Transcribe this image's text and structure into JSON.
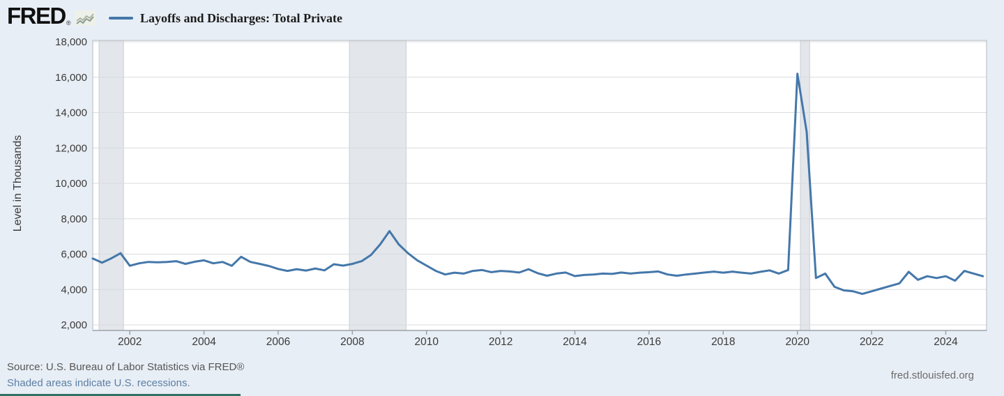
{
  "header": {
    "logo_text": "FRED",
    "registered_mark": "®",
    "series_legend": "Layoffs and Discharges: Total Private"
  },
  "footer": {
    "source_line": "Source: U.S. Bureau of Labor Statistics via FRED®",
    "recession_note": "Shaded areas indicate U.S. recessions.",
    "site_link": "fred.stlouisfed.org"
  },
  "colors": {
    "background": "#e8eef5",
    "plot_background": "#ffffff",
    "line": "#4477aa",
    "grid": "#d8dbdf",
    "plot_border": "#b4b9bf",
    "axis_bottom": "#9aa0a6",
    "recession_fill": "#e3e6ea",
    "recession_edge": "#c9ced4",
    "tick_text": "#3a3a3a",
    "link": "#5b7fa5",
    "source_text": "#565656",
    "accent_bar": "#2e7263"
  },
  "chart_data": {
    "type": "line",
    "title": "Layoffs and Discharges: Total Private",
    "xlabel": "",
    "ylabel": "Level in Thousands",
    "units": "thousands",
    "frequency": "quarterly",
    "grid": "horizontal",
    "legend_position": "top-header",
    "ylim": [
      2000,
      18000
    ],
    "xlim": [
      2001,
      2025.1
    ],
    "y_ticks": [
      2000,
      4000,
      6000,
      8000,
      10000,
      12000,
      14000,
      16000,
      18000
    ],
    "x_ticks": [
      2002,
      2004,
      2006,
      2008,
      2010,
      2012,
      2014,
      2016,
      2018,
      2020,
      2022,
      2024
    ],
    "recession_bands": [
      [
        2001.17,
        2001.83
      ],
      [
        2007.92,
        2009.45
      ],
      [
        2020.08,
        2020.33
      ]
    ],
    "x": [
      2001,
      2001.25,
      2001.5,
      2001.75,
      2002,
      2002.25,
      2002.5,
      2002.75,
      2003,
      2003.25,
      2003.5,
      2003.75,
      2004,
      2004.25,
      2004.5,
      2004.75,
      2005,
      2005.25,
      2005.5,
      2005.75,
      2006,
      2006.25,
      2006.5,
      2006.75,
      2007,
      2007.25,
      2007.5,
      2007.75,
      2008,
      2008.25,
      2008.5,
      2008.75,
      2009,
      2009.25,
      2009.5,
      2009.75,
      2010,
      2010.25,
      2010.5,
      2010.75,
      2011,
      2011.25,
      2011.5,
      2011.75,
      2012,
      2012.25,
      2012.5,
      2012.75,
      2013,
      2013.25,
      2013.5,
      2013.75,
      2014,
      2014.25,
      2014.5,
      2014.75,
      2015,
      2015.25,
      2015.5,
      2015.75,
      2016,
      2016.25,
      2016.5,
      2016.75,
      2017,
      2017.25,
      2017.5,
      2017.75,
      2018,
      2018.25,
      2018.5,
      2018.75,
      2019,
      2019.25,
      2019.5,
      2019.75,
      2020,
      2020.25,
      2020.5,
      2020.75,
      2021,
      2021.25,
      2021.5,
      2021.75,
      2022,
      2022.25,
      2022.5,
      2022.75,
      2023,
      2023.25,
      2023.5,
      2023.75,
      2024,
      2024.25,
      2024.5,
      2024.75,
      2025
    ],
    "values": [
      5750,
      5520,
      5760,
      6050,
      5340,
      5480,
      5560,
      5540,
      5560,
      5600,
      5450,
      5570,
      5650,
      5480,
      5560,
      5340,
      5850,
      5560,
      5450,
      5330,
      5160,
      5050,
      5150,
      5070,
      5190,
      5080,
      5430,
      5350,
      5450,
      5600,
      5950,
      6550,
      7300,
      6550,
      6050,
      5650,
      5350,
      5050,
      4850,
      4950,
      4900,
      5050,
      5100,
      4980,
      5050,
      5020,
      4960,
      5150,
      4920,
      4780,
      4900,
      4960,
      4760,
      4820,
      4850,
      4900,
      4880,
      4960,
      4900,
      4950,
      4980,
      5020,
      4850,
      4780,
      4850,
      4900,
      4960,
      5010,
      4950,
      5010,
      4950,
      4900,
      5000,
      5080,
      4900,
      5100,
      16200,
      12900,
      4650,
      4900,
      4150,
      3950,
      3900,
      3750,
      3900,
      4050,
      4200,
      4350,
      5000,
      4550,
      4750,
      4650,
      4750,
      4500,
      5050,
      4900,
      4750
    ]
  }
}
